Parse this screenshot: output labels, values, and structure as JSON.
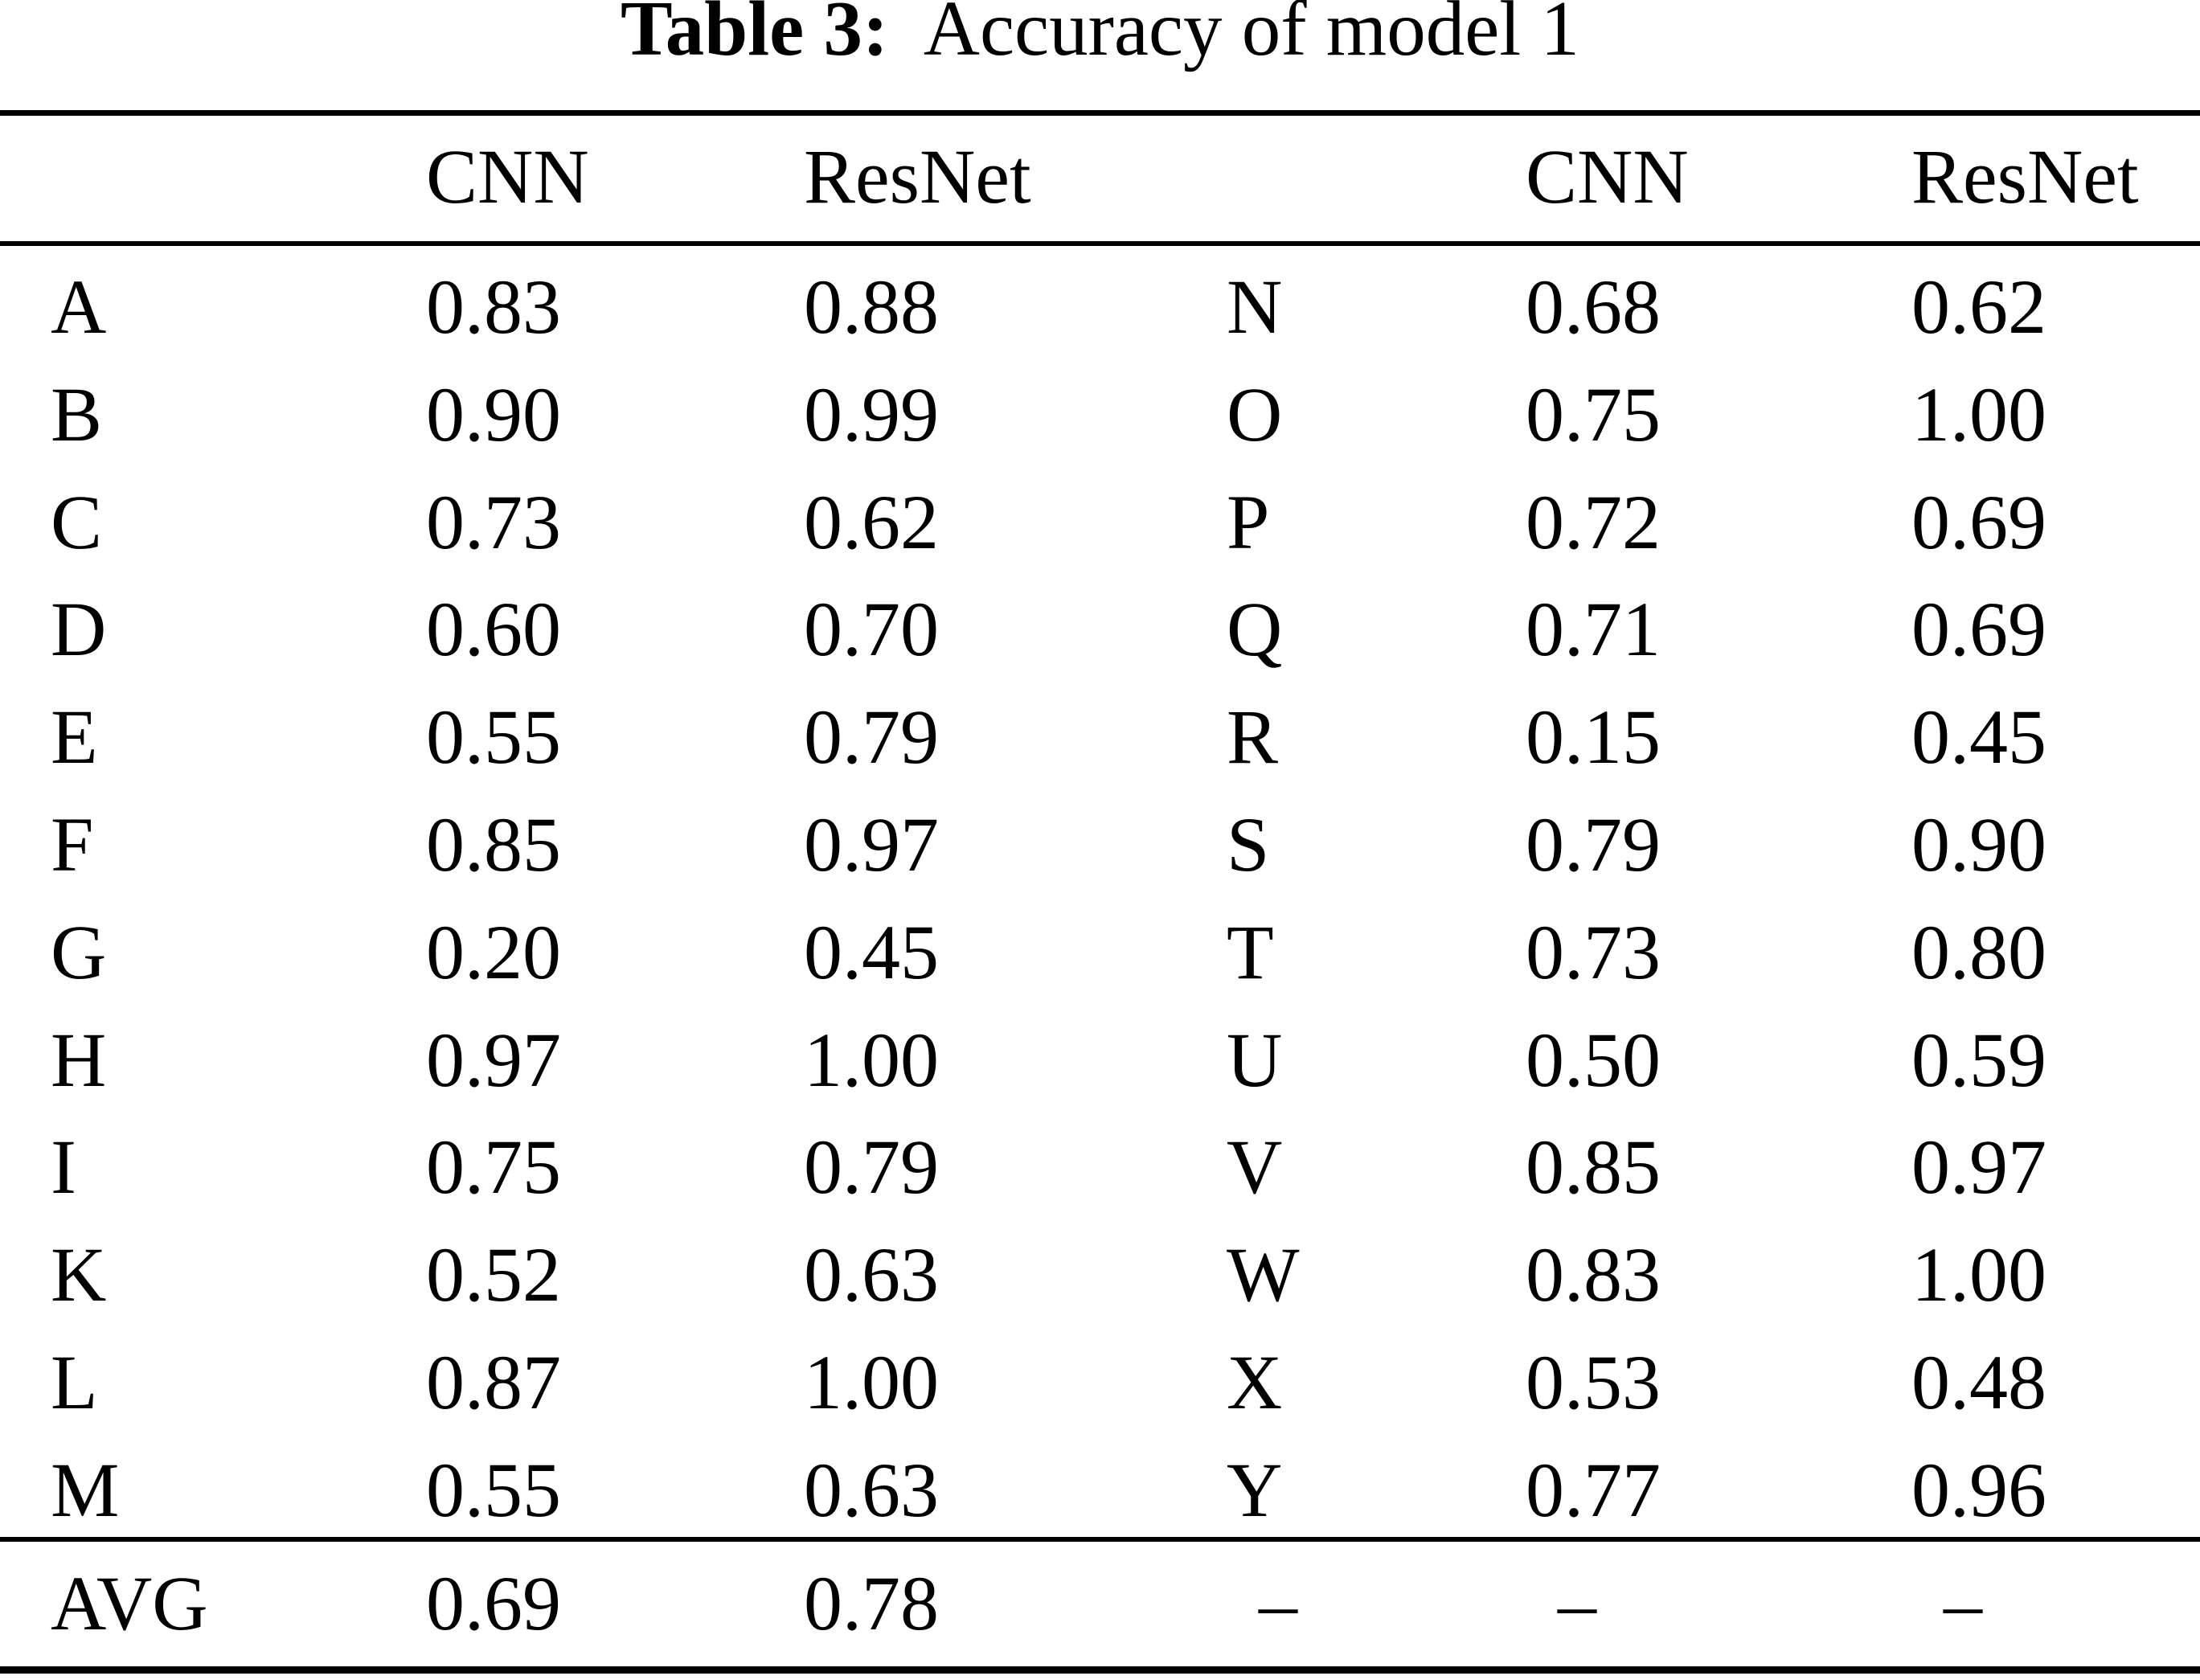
{
  "page": {
    "background_color": "#ffffff",
    "text_color": "#000000"
  },
  "caption": {
    "label": "Table 3:",
    "text": "Accuracy of model 1"
  },
  "table": {
    "column_headers": {
      "cnn_left": "CNN",
      "resnet_left": "ResNet",
      "cnn_right": "CNN",
      "resnet_right": "ResNet"
    },
    "rows": [
      [
        "A",
        "0.83",
        "0.88",
        "N",
        "0.68",
        "0.62"
      ],
      [
        "B",
        "0.90",
        "0.99",
        "O",
        "0.75",
        "1.00"
      ],
      [
        "C",
        "0.73",
        "0.62",
        "P",
        "0.72",
        "0.69"
      ],
      [
        "D",
        "0.60",
        "0.70",
        "Q",
        "0.71",
        "0.69"
      ],
      [
        "E",
        "0.55",
        "0.79",
        "R",
        "0.15",
        "0.45"
      ],
      [
        "F",
        "0.85",
        "0.97",
        "S",
        "0.79",
        "0.90"
      ],
      [
        "G",
        "0.20",
        "0.45",
        "T",
        "0.73",
        "0.80"
      ],
      [
        "H",
        "0.97",
        "1.00",
        "U",
        "0.50",
        "0.59"
      ],
      [
        "I",
        "0.75",
        "0.79",
        "V",
        "0.85",
        "0.97"
      ],
      [
        "K",
        "0.52",
        "0.63",
        "W",
        "0.83",
        "1.00"
      ],
      [
        "L",
        "0.87",
        "1.00",
        "X",
        "0.53",
        "0.48"
      ],
      [
        "M",
        "0.55",
        "0.63",
        "Y",
        "0.77",
        "0.96"
      ]
    ],
    "footer": [
      "AVG",
      "0.69",
      "0.78",
      "–",
      "–",
      "–"
    ]
  }
}
